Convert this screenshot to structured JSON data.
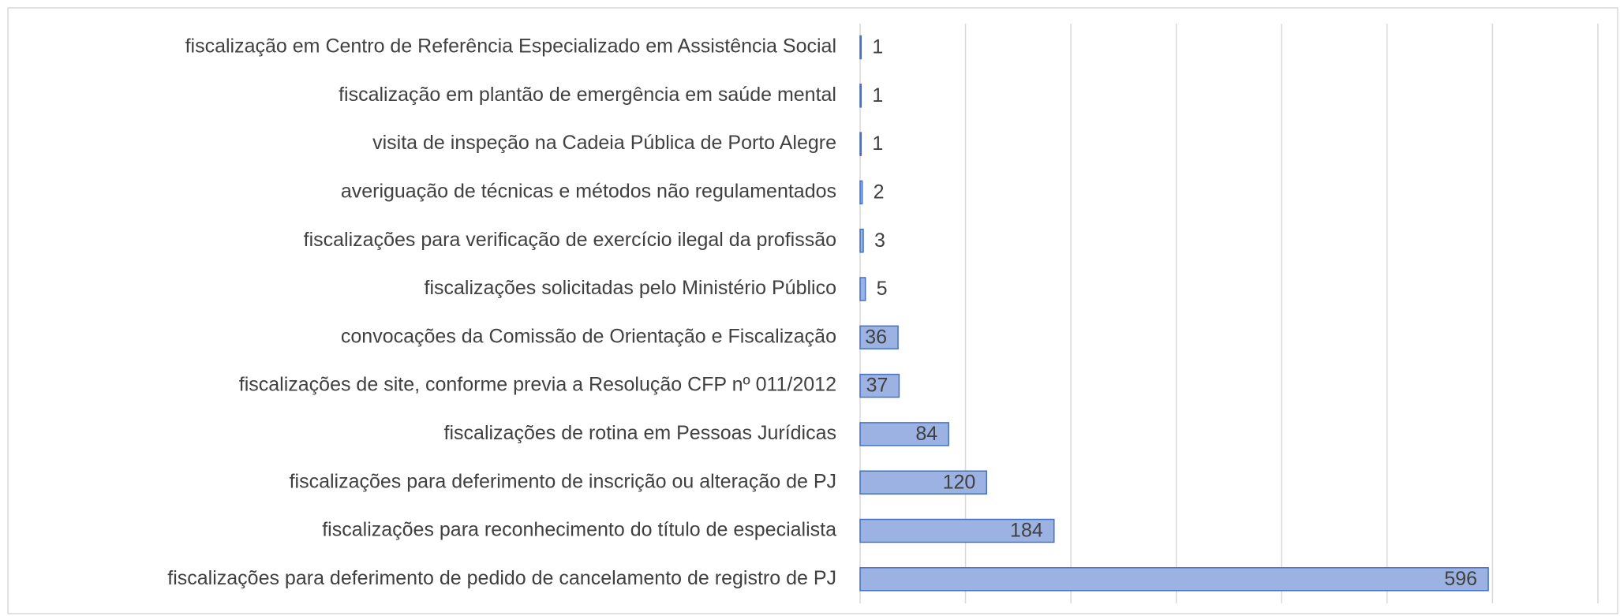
{
  "chart_data": {
    "type": "bar",
    "orientation": "horizontal",
    "categories": [
      "fiscalização em Centro de Referência Especializado em Assistência Social",
      "fiscalização em plantão de emergência em saúde mental",
      "visita de inspeção na Cadeia Pública de Porto Alegre",
      "averiguação de técnicas e métodos não regulamentados",
      "fiscalizações para verificação de exercício ilegal da profissão",
      "fiscalizações solicitadas pelo Ministério Público",
      "convocações da Comissão de Orientação e Fiscalização",
      "fiscalizações de site, conforme previa a Resolução CFP nº 011/2012",
      "fiscalizações de rotina em Pessoas Jurídicas",
      "fiscalizações para deferimento de inscrição ou alteração de PJ",
      "fiscalizações para reconhecimento do título de especialista",
      "fiscalizações para deferimento de pedido de cancelamento de registro de PJ"
    ],
    "values": [
      1,
      1,
      1,
      2,
      3,
      5,
      36,
      37,
      84,
      120,
      184,
      596
    ],
    "color": "#9cb2e2",
    "edge_color": "#4472c4",
    "xlim": [
      0,
      700
    ],
    "xticks": [
      0,
      100,
      200,
      300,
      400,
      500,
      600,
      700
    ],
    "grid": true
  }
}
